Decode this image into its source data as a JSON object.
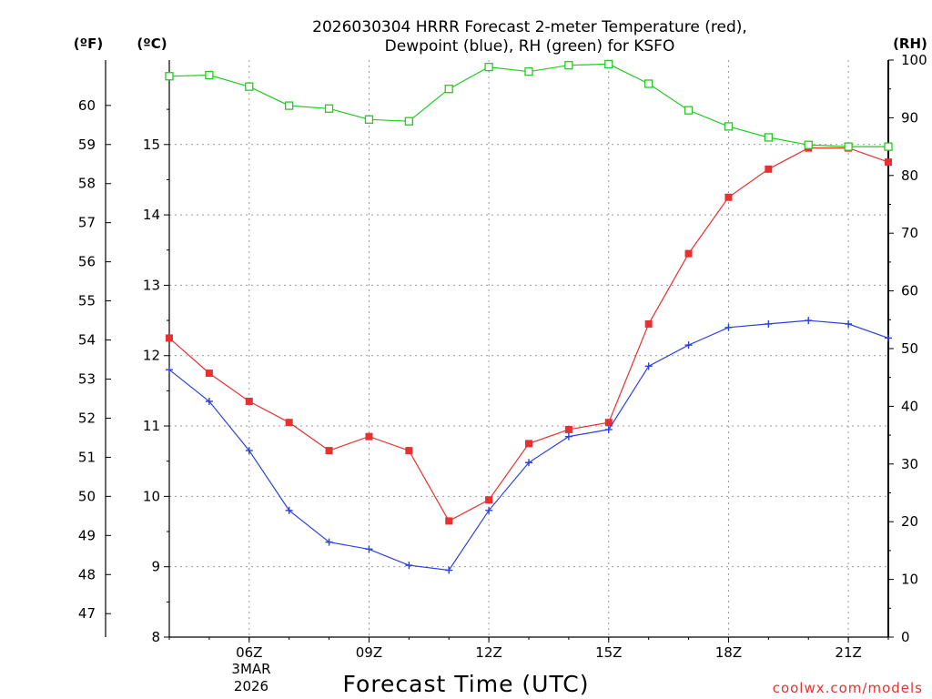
{
  "chart_data": {
    "type": "line",
    "title_line1": "2026030304 HRRR Forecast 2-meter Temperature (red),",
    "title_line2": "Dewpoint (blue), RH (green) for KSFO",
    "xlabel": "Forecast Time (UTC)",
    "unit_f": "(ºF)",
    "unit_c": "(ºC)",
    "unit_rh": "(RH)",
    "credit": "coolwx.com/models",
    "x_hours": [
      4,
      5,
      6,
      7,
      8,
      9,
      10,
      11,
      12,
      13,
      14,
      15,
      16,
      17,
      18,
      19,
      20,
      21,
      22
    ],
    "x_range": [
      4,
      22
    ],
    "x_ticks": [
      {
        "hour": 6,
        "label": "06Z"
      },
      {
        "hour": 9,
        "label": "09Z"
      },
      {
        "hour": 12,
        "label": "12Z"
      },
      {
        "hour": 15,
        "label": "15Z"
      },
      {
        "hour": 18,
        "label": "18Z"
      },
      {
        "hour": 21,
        "label": "21Z"
      }
    ],
    "date_label_line1": "3MAR",
    "date_label_line2": "2026",
    "c_range": [
      8,
      16.2
    ],
    "c_ticks": [
      "8",
      "9",
      "10",
      "11",
      "12",
      "13",
      "14",
      "15"
    ],
    "f_ticks": [
      "47",
      "48",
      "49",
      "50",
      "51",
      "52",
      "53",
      "54",
      "55",
      "56",
      "57",
      "58",
      "59",
      "60"
    ],
    "rh_range": [
      0,
      100
    ],
    "rh_ticks": [
      "0",
      "10",
      "20",
      "30",
      "40",
      "50",
      "60",
      "70",
      "80",
      "90",
      "100"
    ],
    "series": [
      {
        "name": "Temperature",
        "color": "#e83030",
        "marker": "square-filled",
        "values": [
          12.25,
          11.75,
          11.35,
          11.05,
          10.65,
          10.85,
          10.65,
          9.65,
          9.95,
          10.75,
          10.95,
          11.05,
          12.45,
          13.45,
          14.25,
          14.65,
          14.95,
          14.95,
          14.75
        ]
      },
      {
        "name": "Dewpoint",
        "color": "#2a40e0",
        "marker": "plus",
        "values": [
          11.8,
          11.35,
          10.65,
          9.8,
          9.35,
          9.25,
          9.02,
          8.95,
          9.8,
          10.48,
          10.85,
          10.95,
          11.85,
          12.15,
          12.4,
          12.45,
          12.5,
          12.45,
          12.25
        ]
      },
      {
        "name": "RH",
        "color": "#22cc22",
        "marker": "square-open",
        "axis": "rh",
        "values": [
          97.2,
          97.4,
          95.4,
          92.1,
          91.6,
          89.7,
          89.4,
          95.0,
          98.8,
          98.0,
          99.1,
          99.3,
          95.9,
          91.3,
          88.5,
          86.6,
          85.3,
          85.0,
          85.0
        ]
      }
    ],
    "grid": true
  }
}
